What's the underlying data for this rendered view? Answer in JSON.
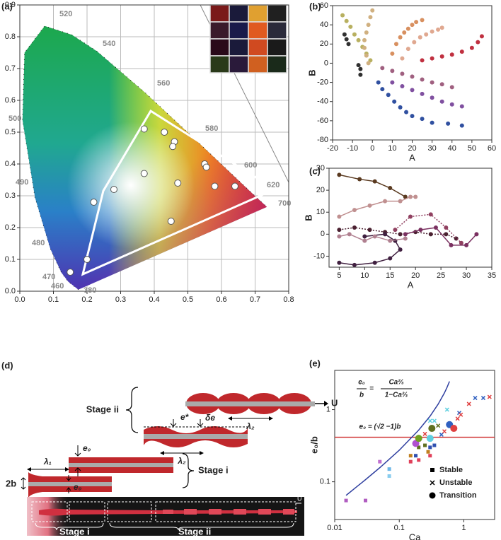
{
  "panels": [
    "(a)",
    "(b)",
    "(c)",
    "(d)",
    "(e)"
  ],
  "chart_data": [
    {
      "type": "scatter",
      "xlim": [
        0,
        0.8
      ],
      "ylim": [
        0,
        0.9
      ],
      "grid": true,
      "xticks": [
        {
          "value": 0,
          "label": "0.0"
        },
        0.1,
        0.2,
        0.3,
        0.4,
        0.5,
        0.6,
        0.7,
        0.8
      ],
      "yticks": [
        {
          "value": 0,
          "label": "0.0"
        },
        0.1,
        0.2,
        0.3,
        0.4,
        0.5,
        0.6,
        0.7,
        0.8,
        0.9
      ],
      "annotations": [
        "520",
        "540",
        "560",
        "580",
        "600",
        "620",
        "700",
        "500",
        "490",
        "480",
        "470",
        "460",
        "380"
      ],
      "series": [
        {
          "color": "#ffffff",
          "edge": "#555555",
          "x": [
            0.37,
            0.43,
            0.46,
            0.455,
            0.55,
            0.555,
            0.37,
            0.28,
            0.47,
            0.58,
            0.64,
            0.22,
            0.45,
            0.2,
            0.15
          ],
          "values": [
            0.51,
            0.5,
            0.47,
            0.455,
            0.4,
            0.39,
            0.37,
            0.32,
            0.34,
            0.33,
            0.33,
            0.28,
            0.22,
            0.1,
            0.06
          ]
        }
      ]
    },
    {
      "type": "scatter",
      "xlabel": "A",
      "ylabel": "B",
      "xlim": [
        -20,
        60
      ],
      "ylim": [
        -80,
        60
      ],
      "xticks": [
        -20,
        -10,
        0,
        10,
        20,
        30,
        40,
        50,
        60
      ],
      "yticks": [
        -80,
        -60,
        -40,
        -20,
        0,
        20,
        40,
        60
      ],
      "series": [
        {
          "color": "#b8b060",
          "x": [
            -15,
            -13,
            -11,
            -9,
            -7,
            -5,
            -3,
            -1
          ],
          "values": [
            50,
            44,
            38,
            30,
            24,
            17,
            10,
            3
          ]
        },
        {
          "color": "#303030",
          "x": [
            -14,
            -13,
            -12,
            -7,
            -6,
            -6
          ],
          "values": [
            30,
            25,
            20,
            -2,
            -6,
            -12
          ]
        },
        {
          "color": "#d0b080",
          "x": [
            0,
            -1,
            -2,
            -3,
            -4,
            -4,
            -3,
            -2
          ],
          "values": [
            55,
            48,
            40,
            32,
            24,
            16,
            8,
            0
          ]
        },
        {
          "color": "#d89060",
          "x": [
            10,
            12,
            14,
            16,
            18,
            20,
            22,
            25
          ],
          "values": [
            10,
            20,
            27,
            32,
            36,
            40,
            43,
            45
          ]
        },
        {
          "color": "#e0a890",
          "x": [
            15,
            18,
            21,
            24,
            27,
            30,
            33,
            35
          ],
          "values": [
            5,
            15,
            22,
            27,
            30,
            33,
            35,
            37
          ]
        },
        {
          "color": "#c03040",
          "x": [
            25,
            30,
            35,
            40,
            45,
            50,
            53,
            55
          ],
          "values": [
            3,
            5,
            7,
            9,
            12,
            16,
            22,
            28
          ]
        },
        {
          "color": "#a06080",
          "x": [
            5,
            10,
            15,
            20,
            25,
            30,
            35,
            40
          ],
          "values": [
            -5,
            -8,
            -11,
            -14,
            -17,
            -20,
            -22,
            -25
          ]
        },
        {
          "color": "#8050a0",
          "x": [
            10,
            15,
            20,
            25,
            30,
            35,
            40,
            45
          ],
          "values": [
            -20,
            -24,
            -28,
            -32,
            -36,
            -40,
            -43,
            -45
          ]
        },
        {
          "color": "#3050a0",
          "x": [
            3,
            5,
            8,
            11,
            14,
            17,
            20,
            25,
            30,
            38,
            45
          ],
          "values": [
            -20,
            -27,
            -33,
            -40,
            -46,
            -51,
            -55,
            -58,
            -62,
            -63,
            -65
          ]
        }
      ]
    },
    {
      "type": "line",
      "xlabel": "A",
      "ylabel": "B",
      "xlim": [
        3,
        35
      ],
      "ylim": [
        -15,
        30
      ],
      "xticks": [
        5,
        10,
        15,
        20,
        25,
        30,
        35
      ],
      "yticks": [
        -10,
        0,
        10,
        20,
        30
      ],
      "series": [
        {
          "color": "#5a3a20",
          "x": [
            5,
            9,
            12,
            15,
            18
          ],
          "values": [
            27,
            25,
            24,
            21,
            17
          ]
        },
        {
          "color": "#c09090",
          "x": [
            5,
            8,
            11,
            14,
            17,
            19,
            20
          ],
          "values": [
            8,
            11,
            13,
            15,
            15,
            17,
            17
          ]
        },
        {
          "color": "#4a2030",
          "dash": true,
          "x": [
            5,
            8,
            11,
            14,
            17,
            20,
            23,
            26,
            28
          ],
          "values": [
            2,
            3,
            2,
            1,
            0,
            1,
            0,
            0,
            -2
          ]
        },
        {
          "color": "#904060",
          "dash": true,
          "x": [
            16,
            19,
            23,
            26,
            29
          ],
          "values": [
            2,
            8,
            9,
            3,
            -4
          ]
        },
        {
          "color": "#7a3060",
          "x": [
            18,
            21,
            24,
            27,
            30,
            32
          ],
          "values": [
            0,
            2,
            3,
            -5,
            -5,
            0
          ]
        },
        {
          "color": "#402040",
          "x": [
            5,
            8,
            12,
            15,
            17,
            16,
            14,
            10
          ],
          "values": [
            -13,
            -14,
            -13,
            -11,
            -7,
            -3,
            0,
            -1
          ]
        },
        {
          "color": "#b08090",
          "x": [
            5,
            7,
            10,
            12,
            15,
            18
          ],
          "values": [
            -1,
            0,
            -3,
            -1,
            -3,
            -2
          ]
        }
      ]
    },
    {
      "type": "scatter",
      "xlabel": "Ca",
      "ylabel": "e₀/b",
      "xscale": "log",
      "yscale": "log",
      "xlim": [
        0.01,
        3
      ],
      "ylim": [
        0.03,
        3.5
      ],
      "xticks": [
        0.01,
        0.1,
        1
      ],
      "yticks": [
        0.1,
        1
      ],
      "legend": "lower right",
      "annotations": [
        "e₀",
        "b",
        "=",
        "Ca⅔",
        "1−Ca⅔",
        "e₀ = (√2 −1)b"
      ],
      "curve": {
        "color": "#3040a0",
        "x": [
          0.015,
          0.03,
          0.05,
          0.1,
          0.2,
          0.3,
          0.4,
          0.5,
          0.55,
          0.6
        ],
        "values": [
          0.0648,
          0.107,
          0.157,
          0.274,
          0.52,
          0.812,
          1.19,
          1.7,
          2.04,
          2.46
        ]
      },
      "hline": {
        "value": 0.414,
        "color": "#d03030"
      },
      "series": [
        {
          "name": "Stable",
          "marker": "square",
          "color": "#000000",
          "x": [
            0.015,
            0.03,
            0.05,
            0.07,
            0.07,
            0.15,
            0.15,
            0.18,
            0.2,
            0.25,
            0.3,
            0.3,
            0.35,
            0.2,
            0.28
          ],
          "values": [
            0.055,
            0.055,
            0.19,
            0.15,
            0.12,
            0.19,
            0.23,
            0.23,
            0.3,
            0.32,
            0.3,
            0.23,
            0.32,
            0.2,
            0.26
          ],
          "colors": [
            "#b05cc0",
            "#b05cc0",
            "#c070d0",
            "#6bb6e8",
            "#88ccee",
            "#e0405a",
            "#c08020",
            "#3050b0",
            "#607020",
            "#607020",
            "#3050b0",
            "#e0405a",
            "#3050b0",
            "#e0405a",
            "#c08020"
          ]
        },
        {
          "name": "Unstable",
          "marker": "cross",
          "color": "#000000",
          "x": [
            0.2,
            0.25,
            0.3,
            0.35,
            0.4,
            0.45,
            0.5,
            0.55,
            0.8,
            0.85,
            1.2,
            1.5,
            2,
            2.5,
            0.9
          ],
          "values": [
            0.38,
            0.46,
            0.7,
            0.7,
            0.6,
            0.45,
            0.5,
            1.0,
            0.75,
            0.9,
            1.2,
            1.45,
            1.45,
            1.5,
            0.85
          ],
          "colors": [
            "#b050d0",
            "#e04040",
            "#60d0e0",
            "#60d0e0",
            "#607020",
            "#3060c0",
            "#e04040",
            "#60d0e0",
            "#e04040",
            "#3060c0",
            "#e04040",
            "#3060c0",
            "#3060c0",
            "#e04040",
            "#e04040"
          ]
        },
        {
          "name": "Transition",
          "marker": "circle",
          "color": "#000000",
          "x": [
            0.18,
            0.2,
            0.3,
            0.32,
            0.6,
            0.7
          ],
          "values": [
            0.34,
            0.4,
            0.4,
            0.55,
            0.62,
            0.55
          ],
          "colors": [
            "#b050d0",
            "#70a020",
            "#60d0e0",
            "#607020",
            "#3060c0",
            "#e04040"
          ]
        }
      ]
    }
  ],
  "diagram": {
    "stage_ii": "Stage ii",
    "u": "U",
    "lambda2_top": "λ₂",
    "e_star": "e*",
    "delta_e": "δe",
    "lambda2": "λ₂",
    "e0_top": "e₀",
    "lambda1": "λ₁",
    "e0_bottom": "e₀",
    "two_b": "2b",
    "stage_i": "Stage i",
    "photo_stage_i": "Stage i",
    "photo_stage_ii": "Stage ii",
    "photo_u": "U"
  }
}
